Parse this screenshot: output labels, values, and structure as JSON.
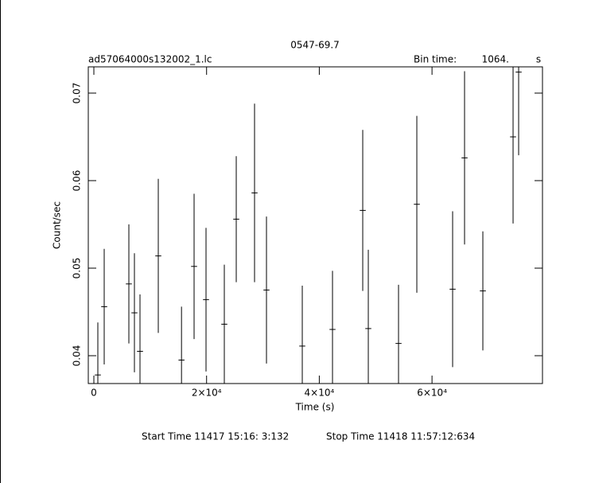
{
  "chart_data": {
    "type": "errorbar",
    "title": "0547-69.7",
    "file_name": "ad57064000s132002_1.lc",
    "bin_time_label": "Bin time:",
    "bin_time": {
      "value": 1064,
      "label": "1064."
    },
    "bin_time_unit": "s",
    "x_label": "Time (s)",
    "y_label": "Count/sec",
    "start_time": "Start Time 11417  15:16: 3:132",
    "stop_time": "Stop Time 11418 11:57:12:634",
    "x": [
      706,
      1835,
      6210,
      7198,
      8186,
      11432,
      15550,
      17784,
      19901,
      23147,
      25265,
      28511,
      30628,
      36980,
      42343,
      47707,
      48695,
      54058,
      57304,
      63656,
      65773,
      69019,
      74382,
      75370
    ],
    "values": [
      0.0378,
      0.0456,
      0.0482,
      0.0449,
      0.0405,
      0.0514,
      0.0395,
      0.0502,
      0.0464,
      0.0436,
      0.0556,
      0.0586,
      0.0475,
      0.0411,
      0.043,
      0.0566,
      0.0431,
      0.0414,
      0.0573,
      0.0476,
      0.0626,
      0.0474,
      0.065,
      0.0724
    ],
    "errors": [
      0.006,
      0.0066,
      0.0068,
      0.0068,
      0.0065,
      0.0088,
      0.0061,
      0.0083,
      0.0082,
      0.0068,
      0.0072,
      0.0102,
      0.0084,
      0.0069,
      0.0067,
      0.0092,
      0.009,
      0.0067,
      0.0101,
      0.0089,
      0.0099,
      0.0068,
      0.0099,
      0.0095
    ],
    "color": "#000000",
    "xlim": [
      -988,
      79600
    ],
    "ylim": [
      0.03682,
      0.073
    ],
    "xticks": [
      0,
      {
        "value": 20000,
        "label": "2×10⁴"
      },
      {
        "value": 40000,
        "label": "4×10⁴"
      },
      {
        "value": 60000,
        "label": "6×10⁴"
      }
    ],
    "yticks": [
      0.04,
      0.05,
      0.06,
      0.07
    ]
  }
}
